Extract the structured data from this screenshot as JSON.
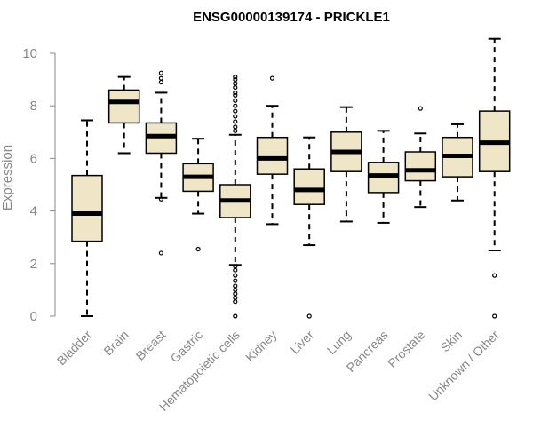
{
  "colors": {
    "box_fill": "#efe6c8",
    "stroke": "#000000",
    "axis": "#888888",
    "text": "#888888",
    "title": "#000000"
  },
  "chart_data": {
    "type": "box",
    "title": "ENSG00000139174 - PRICKLE1",
    "xlabel": "",
    "ylabel": "Expression",
    "ylim": [
      0,
      10.6
    ],
    "yticks": [
      0,
      2,
      4,
      6,
      8,
      10
    ],
    "grid": false,
    "categories": [
      "Bladder",
      "Brain",
      "Breast",
      "Gastric",
      "Hematopoietic cells",
      "Kidney",
      "Liver",
      "Lung",
      "Pancreas",
      "Prostate",
      "Skin",
      "Unknown / Other"
    ],
    "boxes": [
      {
        "min": 0.0,
        "q1": 2.85,
        "median": 3.9,
        "q3": 5.35,
        "max": 7.45,
        "outliers": []
      },
      {
        "min": 6.2,
        "q1": 7.35,
        "median": 8.15,
        "q3": 8.6,
        "max": 9.1,
        "outliers": []
      },
      {
        "min": 4.5,
        "q1": 6.2,
        "median": 6.85,
        "q3": 7.35,
        "max": 8.5,
        "outliers": [
          9.25,
          9.05,
          8.9,
          4.45,
          2.4
        ]
      },
      {
        "min": 3.9,
        "q1": 4.75,
        "median": 5.3,
        "q3": 5.8,
        "max": 6.75,
        "outliers": [
          2.55
        ]
      },
      {
        "min": 1.95,
        "q1": 3.75,
        "median": 4.4,
        "q3": 5.0,
        "max": 6.9,
        "outliers": [
          9.1,
          9.0,
          8.85,
          8.7,
          8.5,
          8.4,
          8.2,
          8.0,
          7.8,
          7.6,
          7.4,
          7.2,
          7.05,
          1.9,
          1.75,
          1.55,
          1.35,
          1.15,
          1.0,
          0.85,
          0.7,
          0.55,
          0.0
        ]
      },
      {
        "min": 3.5,
        "q1": 5.4,
        "median": 6.0,
        "q3": 6.8,
        "max": 8.0,
        "outliers": [
          9.05
        ]
      },
      {
        "min": 2.7,
        "q1": 4.25,
        "median": 4.8,
        "q3": 5.6,
        "max": 6.8,
        "outliers": [
          0.0
        ]
      },
      {
        "min": 3.6,
        "q1": 5.5,
        "median": 6.25,
        "q3": 7.0,
        "max": 7.95,
        "outliers": []
      },
      {
        "min": 3.55,
        "q1": 4.7,
        "median": 5.35,
        "q3": 5.85,
        "max": 7.05,
        "outliers": []
      },
      {
        "min": 4.15,
        "q1": 5.15,
        "median": 5.55,
        "q3": 6.25,
        "max": 6.95,
        "outliers": [
          7.9
        ]
      },
      {
        "min": 4.4,
        "q1": 5.3,
        "median": 6.1,
        "q3": 6.8,
        "max": 7.3,
        "outliers": []
      },
      {
        "min": 2.5,
        "q1": 5.5,
        "median": 6.6,
        "q3": 7.8,
        "max": 10.55,
        "outliers": [
          1.55,
          0.0
        ]
      }
    ]
  }
}
